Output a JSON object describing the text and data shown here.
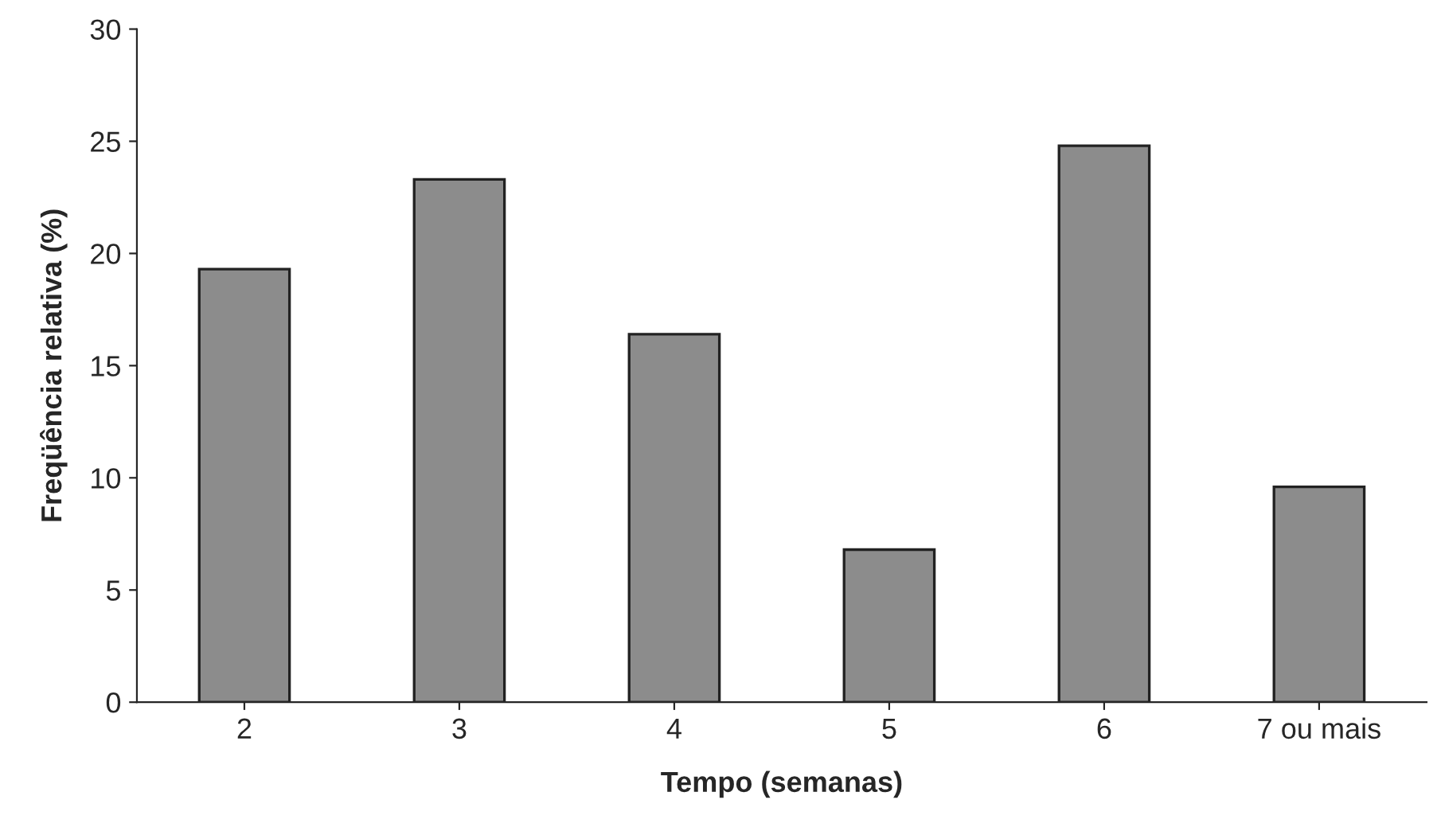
{
  "chart_data": {
    "type": "bar",
    "xlabel": "Tempo (semanas)",
    "ylabel": "Freqüência relativa (%)",
    "categories": [
      "2",
      "3",
      "4",
      "5",
      "6",
      "7 ou mais"
    ],
    "values": [
      19.3,
      23.3,
      16.4,
      6.8,
      24.8,
      9.6
    ],
    "color": "#8c8c8c",
    "ylim": [
      0,
      30
    ],
    "yticks": [
      0,
      5,
      10,
      15,
      20,
      25,
      30
    ],
    "grid": false,
    "legend": false
  }
}
